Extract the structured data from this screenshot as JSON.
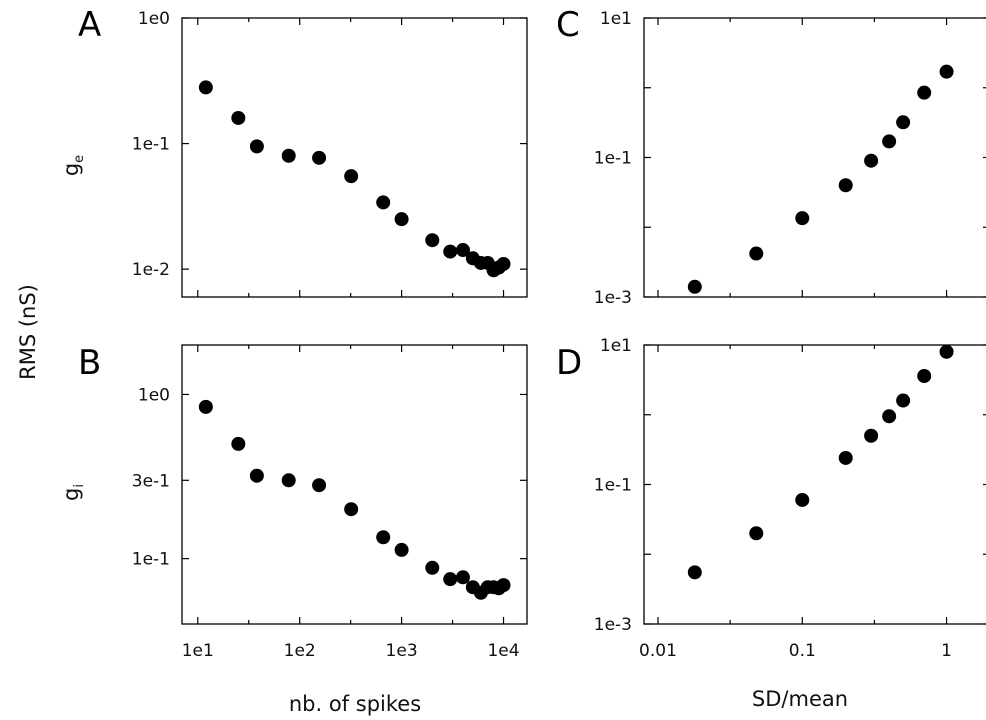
{
  "figure": {
    "ylabel_shared": "RMS (nS)",
    "xlabel_left": "nb. of spikes",
    "xlabel_right": "SD/mean"
  },
  "chart_data": [
    {
      "panel": "A",
      "type": "scatter",
      "ylabel": "g",
      "ylabel_sub": "e",
      "xscale": "log",
      "yscale": "log",
      "xlim": [
        7,
        17000
      ],
      "ylim": [
        0.006,
        1.0
      ],
      "xticks": [
        10,
        100,
        1000,
        10000
      ],
      "xtick_labels": [
        "1e1",
        "1e2",
        "1e3",
        "1e4"
      ],
      "show_xtick_labels": false,
      "yticks": [
        0.01,
        0.1,
        1.0
      ],
      "ytick_labels": [
        "1e-2",
        "1e-1",
        "1e0"
      ],
      "x": [
        12,
        25,
        38,
        78,
        155,
        320,
        660,
        1000,
        2000,
        3000,
        4000,
        5000,
        6000,
        7000,
        8000,
        9000,
        10000
      ],
      "y": [
        0.28,
        0.16,
        0.095,
        0.08,
        0.077,
        0.055,
        0.034,
        0.025,
        0.017,
        0.0138,
        0.0142,
        0.0122,
        0.0112,
        0.0112,
        0.0098,
        0.0103,
        0.011
      ]
    },
    {
      "panel": "B",
      "type": "scatter",
      "ylabel": "g",
      "ylabel_sub": "i",
      "xscale": "log",
      "yscale": "log",
      "xlim": [
        7,
        17000
      ],
      "ylim": [
        0.04,
        2.0
      ],
      "xticks": [
        10,
        100,
        1000,
        10000
      ],
      "xtick_labels": [
        "1e1",
        "1e2",
        "1e3",
        "1e4"
      ],
      "show_xtick_labels": true,
      "yticks": [
        0.1,
        0.3,
        1.0
      ],
      "ytick_labels": [
        "1e-1",
        "3e-1",
        "1e0"
      ],
      "x": [
        12,
        25,
        38,
        78,
        155,
        320,
        660,
        1000,
        2000,
        3000,
        4000,
        5000,
        6000,
        7000,
        8000,
        9000,
        10000
      ],
      "y": [
        0.84,
        0.5,
        0.32,
        0.3,
        0.28,
        0.2,
        0.135,
        0.113,
        0.088,
        0.075,
        0.077,
        0.067,
        0.062,
        0.067,
        0.067,
        0.066,
        0.069
      ]
    },
    {
      "panel": "C",
      "type": "scatter",
      "xscale": "log",
      "yscale": "log",
      "xlim": [
        0.008,
        2.0
      ],
      "ylim": [
        0.001,
        10.0
      ],
      "xticks": [
        0.01,
        0.1,
        1.0
      ],
      "xtick_labels": [
        "0.01",
        "0.1",
        "1"
      ],
      "show_xtick_labels": false,
      "yticks": [
        0.001,
        0.01,
        0.1,
        1.0,
        10.0
      ],
      "ytick_labels": [
        "1e-3",
        "",
        "1e-1",
        "",
        "1e1"
      ],
      "x": [
        0.018,
        0.048,
        0.1,
        0.2,
        0.3,
        0.4,
        0.5,
        0.7,
        1.0
      ],
      "y": [
        0.0014,
        0.0042,
        0.0135,
        0.04,
        0.09,
        0.17,
        0.32,
        0.85,
        1.7
      ]
    },
    {
      "panel": "D",
      "type": "scatter",
      "xscale": "log",
      "yscale": "log",
      "xlim": [
        0.008,
        2.0
      ],
      "ylim": [
        0.001,
        10.0
      ],
      "xticks": [
        0.01,
        0.1,
        1.0
      ],
      "xtick_labels": [
        "0.01",
        "0.1",
        "1"
      ],
      "show_xtick_labels": true,
      "yticks": [
        0.001,
        0.01,
        0.1,
        1.0,
        10.0
      ],
      "ytick_labels": [
        "1e-3",
        "",
        "1e-1",
        "",
        "1e1"
      ],
      "x": [
        0.018,
        0.048,
        0.1,
        0.2,
        0.3,
        0.4,
        0.5,
        0.7,
        1.0
      ],
      "y": [
        0.0055,
        0.02,
        0.06,
        0.24,
        0.5,
        0.95,
        1.6,
        3.6,
        8.0
      ]
    }
  ]
}
